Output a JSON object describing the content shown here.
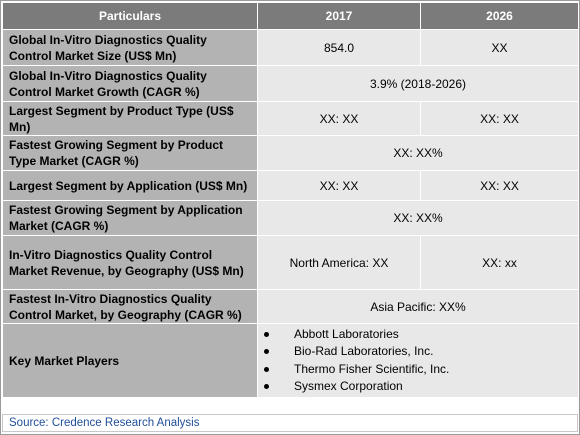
{
  "header": {
    "col1": "Particulars",
    "col2": "2017",
    "col3": "2026"
  },
  "rows": [
    {
      "label": "Global In-Vitro Diagnostics Quality Control Market Size (US$ Mn)",
      "v2017": "854.0",
      "v2026": "XX"
    },
    {
      "label": "Global In-Vitro Diagnostics Quality Control Market Growth (CAGR %)",
      "span": "3.9% (2018-2026)"
    },
    {
      "label": "Largest Segment by Product Type (US$ Mn)",
      "v2017": "XX:  XX",
      "v2026": "XX:  XX"
    },
    {
      "label": "Fastest Growing Segment by Product Type Market (CAGR %)",
      "span": "XX: XX%"
    },
    {
      "label": "Largest Segment by Application (US$ Mn)",
      "v2017": "XX:  XX",
      "v2026": "XX:  XX"
    },
    {
      "label": "Fastest Growing Segment by Application Market (CAGR %)",
      "span": "XX: XX%"
    },
    {
      "label": "In-Vitro Diagnostics Quality Control Market Revenue, by Geography (US$ Mn)",
      "v2017": "North America: XX",
      "v2026": "XX: xx"
    },
    {
      "label": "Fastest In-Vitro Diagnostics Quality Control Market, by Geography (CAGR %)",
      "span": "Asia Pacific: XX%"
    }
  ],
  "players": {
    "label": "Key Market Players",
    "items": [
      "Abbott Laboratories",
      "Bio-Rad Laboratories, Inc.",
      "Thermo Fisher Scientific, Inc.",
      "Sysmex Corporation"
    ]
  },
  "source": "Source: Credence Research Analysis",
  "colors": {
    "header_bg": "#7b7b7b",
    "label_bg": "#b3b3b3",
    "value_bg": "#e8e8e8",
    "source_text": "#1f4e9a"
  }
}
